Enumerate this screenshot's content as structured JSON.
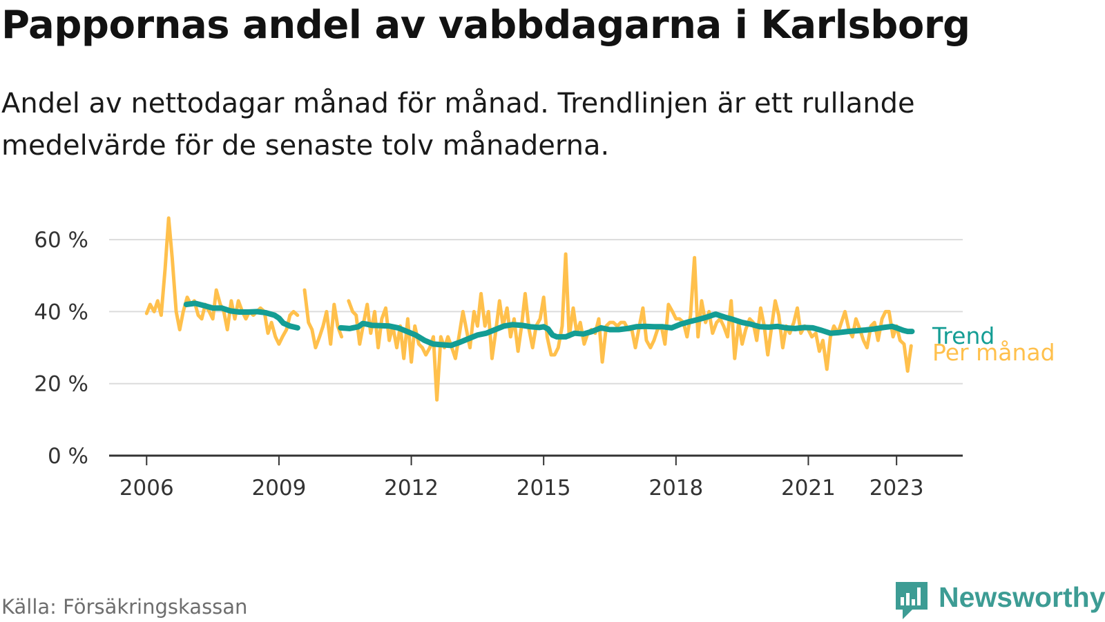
{
  "title": "Pappornas andel av vabbdagarna i Karlsborg",
  "subtitle": "Andel av nettodagar månad för månad. Trendlinjen är ett rullande medelvärde för de senaste tolv månaderna.",
  "source": "Källa: Försäkringskassan",
  "brand": {
    "name": "Newsworthy",
    "logo_icon": "bar-chart-speech-bubble-icon",
    "color": "#3d9c94"
  },
  "chart_data": {
    "type": "line",
    "title": "Pappornas andel av vabbdagarna i Karlsborg",
    "xlim": [
      2005.15,
      2024.5
    ],
    "ylim": [
      0,
      70
    ],
    "y_ticks": [
      0,
      20,
      40,
      60
    ],
    "y_tick_labels": [
      "0 %",
      "20 %",
      "40 %",
      "60 %"
    ],
    "x_ticks": [
      2006,
      2009,
      2012,
      2015,
      2018,
      2021,
      2023
    ],
    "x_tick_labels": [
      "2006",
      "2009",
      "2012",
      "2015",
      "2018",
      "2021",
      "2023"
    ],
    "grid": true,
    "colors": {
      "per_month": "#ffc04c",
      "trend": "#149d94",
      "grid": "#dcdcdc",
      "axis": "#333333",
      "tick_text": "#333333"
    },
    "series": [
      {
        "name": "Per månad",
        "points": [
          [
            2006.0,
            39.5
          ],
          [
            2006.08,
            42
          ],
          [
            2006.17,
            40
          ],
          [
            2006.25,
            43
          ],
          [
            2006.33,
            39
          ],
          [
            2006.42,
            52
          ],
          [
            2006.5,
            66
          ],
          [
            2006.58,
            55
          ],
          [
            2006.67,
            40
          ],
          [
            2006.75,
            35
          ],
          [
            2006.83,
            40
          ],
          [
            2006.92,
            44
          ],
          [
            2007.0,
            42
          ],
          [
            2007.08,
            43
          ],
          [
            2007.17,
            39
          ],
          [
            2007.25,
            38
          ],
          [
            2007.33,
            42
          ],
          [
            2007.42,
            40
          ],
          [
            2007.5,
            38
          ],
          [
            2007.58,
            46
          ],
          [
            2007.67,
            42
          ],
          [
            2007.75,
            40
          ],
          [
            2007.83,
            35
          ],
          [
            2007.92,
            43
          ],
          [
            2008.0,
            38
          ],
          [
            2008.08,
            43
          ],
          [
            2008.17,
            40
          ],
          [
            2008.25,
            38
          ],
          [
            2008.33,
            40
          ],
          [
            2008.42,
            39
          ],
          [
            2008.5,
            40
          ],
          [
            2008.58,
            41
          ],
          [
            2008.67,
            40
          ],
          [
            2008.75,
            34
          ],
          [
            2008.83,
            37
          ],
          [
            2008.92,
            33
          ],
          [
            2009.0,
            31
          ],
          [
            2009.08,
            33
          ],
          [
            2009.17,
            35
          ],
          [
            2009.25,
            39
          ],
          [
            2009.33,
            40
          ],
          [
            2009.42,
            39
          ],
          null,
          [
            2009.58,
            46
          ],
          [
            2009.67,
            37
          ],
          [
            2009.75,
            35
          ],
          [
            2009.83,
            30
          ],
          [
            2009.92,
            33
          ],
          [
            2010.0,
            36
          ],
          [
            2010.08,
            40
          ],
          [
            2010.17,
            31
          ],
          [
            2010.25,
            42
          ],
          [
            2010.33,
            36
          ],
          [
            2010.42,
            33
          ],
          null,
          [
            2010.58,
            43
          ],
          [
            2010.67,
            40
          ],
          [
            2010.75,
            39
          ],
          [
            2010.83,
            31
          ],
          [
            2010.92,
            37
          ],
          [
            2011.0,
            42
          ],
          [
            2011.08,
            34
          ],
          [
            2011.17,
            40
          ],
          [
            2011.25,
            30
          ],
          [
            2011.33,
            38
          ],
          [
            2011.42,
            41
          ],
          [
            2011.5,
            32
          ],
          [
            2011.58,
            36
          ],
          [
            2011.67,
            30
          ],
          [
            2011.75,
            36
          ],
          [
            2011.83,
            27
          ],
          [
            2011.92,
            38
          ],
          [
            2012.0,
            26
          ],
          [
            2012.08,
            36
          ],
          [
            2012.17,
            31
          ],
          [
            2012.25,
            30
          ],
          [
            2012.33,
            28
          ],
          [
            2012.42,
            30
          ],
          [
            2012.5,
            33
          ],
          [
            2012.58,
            15.5
          ],
          [
            2012.67,
            33
          ],
          [
            2012.75,
            30
          ],
          [
            2012.83,
            33
          ],
          [
            2012.92,
            30
          ],
          [
            2013.0,
            27
          ],
          [
            2013.08,
            33
          ],
          [
            2013.17,
            40
          ],
          [
            2013.25,
            35
          ],
          [
            2013.33,
            30
          ],
          [
            2013.42,
            40
          ],
          [
            2013.5,
            36
          ],
          [
            2013.58,
            45
          ],
          [
            2013.67,
            36
          ],
          [
            2013.75,
            40
          ],
          [
            2013.83,
            27
          ],
          [
            2013.92,
            35
          ],
          [
            2014.0,
            43
          ],
          [
            2014.08,
            36
          ],
          [
            2014.17,
            41
          ],
          [
            2014.25,
            33
          ],
          [
            2014.33,
            38
          ],
          [
            2014.42,
            29
          ],
          [
            2014.5,
            36
          ],
          [
            2014.58,
            45
          ],
          [
            2014.67,
            35
          ],
          [
            2014.75,
            30
          ],
          [
            2014.83,
            36
          ],
          [
            2014.92,
            38
          ],
          [
            2015.0,
            44
          ],
          [
            2015.08,
            33
          ],
          [
            2015.17,
            28
          ],
          [
            2015.25,
            28
          ],
          [
            2015.33,
            30
          ],
          [
            2015.42,
            36
          ],
          [
            2015.5,
            56
          ],
          [
            2015.58,
            33
          ],
          [
            2015.67,
            41
          ],
          [
            2015.75,
            34
          ],
          [
            2015.83,
            37
          ],
          [
            2015.92,
            31
          ],
          [
            2016.0,
            34
          ],
          [
            2016.08,
            35
          ],
          [
            2016.17,
            34
          ],
          [
            2016.25,
            38
          ],
          [
            2016.33,
            26
          ],
          [
            2016.42,
            36
          ],
          [
            2016.5,
            37
          ],
          [
            2016.58,
            37
          ],
          [
            2016.67,
            36
          ],
          [
            2016.75,
            37
          ],
          [
            2016.83,
            37
          ],
          [
            2016.92,
            35
          ],
          [
            2017.0,
            35
          ],
          [
            2017.08,
            30
          ],
          [
            2017.17,
            36
          ],
          [
            2017.25,
            41
          ],
          [
            2017.33,
            32
          ],
          [
            2017.42,
            30
          ],
          [
            2017.5,
            32
          ],
          [
            2017.58,
            35
          ],
          [
            2017.67,
            36
          ],
          [
            2017.75,
            31
          ],
          [
            2017.83,
            42
          ],
          [
            2017.92,
            40
          ],
          [
            2018.0,
            38
          ],
          [
            2018.08,
            38
          ],
          [
            2018.17,
            37
          ],
          [
            2018.25,
            33
          ],
          [
            2018.33,
            39
          ],
          [
            2018.42,
            55
          ],
          [
            2018.5,
            33
          ],
          [
            2018.58,
            43
          ],
          [
            2018.67,
            37
          ],
          [
            2018.75,
            40
          ],
          [
            2018.83,
            34
          ],
          [
            2018.92,
            37
          ],
          [
            2019.0,
            38
          ],
          [
            2019.08,
            36
          ],
          [
            2019.17,
            33
          ],
          [
            2019.25,
            43
          ],
          [
            2019.33,
            27
          ],
          [
            2019.42,
            37
          ],
          [
            2019.5,
            31
          ],
          [
            2019.58,
            35
          ],
          [
            2019.67,
            38
          ],
          [
            2019.75,
            37
          ],
          [
            2019.83,
            32
          ],
          [
            2019.92,
            41
          ],
          [
            2020.0,
            36
          ],
          [
            2020.08,
            28
          ],
          [
            2020.17,
            36
          ],
          [
            2020.25,
            43
          ],
          [
            2020.33,
            39
          ],
          [
            2020.42,
            30
          ],
          [
            2020.5,
            36
          ],
          [
            2020.58,
            34
          ],
          [
            2020.67,
            37
          ],
          [
            2020.75,
            41
          ],
          [
            2020.83,
            34
          ],
          [
            2020.92,
            36
          ],
          [
            2021.0,
            35
          ],
          [
            2021.08,
            33
          ],
          [
            2021.17,
            34
          ],
          [
            2021.25,
            29
          ],
          [
            2021.33,
            32
          ],
          [
            2021.42,
            24
          ],
          [
            2021.5,
            33
          ],
          [
            2021.58,
            36
          ],
          [
            2021.67,
            34
          ],
          [
            2021.75,
            37
          ],
          [
            2021.83,
            40
          ],
          [
            2021.92,
            35
          ],
          [
            2022.0,
            33
          ],
          [
            2022.08,
            38
          ],
          [
            2022.17,
            35
          ],
          [
            2022.25,
            32
          ],
          [
            2022.33,
            30
          ],
          [
            2022.42,
            36
          ],
          [
            2022.5,
            37
          ],
          [
            2022.58,
            32
          ],
          [
            2022.67,
            38
          ],
          [
            2022.75,
            40
          ],
          [
            2022.83,
            40
          ],
          [
            2022.92,
            33
          ],
          [
            2023.0,
            36
          ],
          [
            2023.08,
            32
          ],
          [
            2023.17,
            31
          ],
          [
            2023.25,
            23.5
          ],
          [
            2023.33,
            30.5
          ]
        ]
      },
      {
        "name": "Trend",
        "points": [
          [
            2006.9,
            42
          ],
          [
            2007.1,
            42.3
          ],
          [
            2007.3,
            41.7
          ],
          [
            2007.5,
            41
          ],
          [
            2007.7,
            41
          ],
          [
            2007.9,
            40.2
          ],
          [
            2008.1,
            39.9
          ],
          [
            2008.3,
            39.9
          ],
          [
            2008.5,
            40
          ],
          [
            2008.7,
            39.7
          ],
          [
            2008.9,
            39
          ],
          [
            2009.0,
            38.2
          ],
          [
            2009.1,
            36.8
          ],
          [
            2009.25,
            36
          ],
          [
            2009.42,
            35.5
          ],
          null,
          [
            2010.4,
            35.5
          ],
          [
            2010.6,
            35.3
          ],
          [
            2010.8,
            35.8
          ],
          [
            2010.9,
            36.7
          ],
          [
            2011.0,
            36.5
          ],
          [
            2011.1,
            36.2
          ],
          [
            2011.3,
            36.1
          ],
          [
            2011.5,
            36
          ],
          [
            2011.7,
            35.5
          ],
          [
            2011.9,
            34.5
          ],
          [
            2012.1,
            33.5
          ],
          [
            2012.3,
            32
          ],
          [
            2012.5,
            31
          ],
          [
            2012.7,
            30.8
          ],
          [
            2012.9,
            30.6
          ],
          [
            2013.1,
            31.5
          ],
          [
            2013.3,
            32.5
          ],
          [
            2013.5,
            33.5
          ],
          [
            2013.7,
            34
          ],
          [
            2013.9,
            35
          ],
          [
            2014.1,
            36
          ],
          [
            2014.3,
            36.4
          ],
          [
            2014.5,
            36.2
          ],
          [
            2014.7,
            35.8
          ],
          [
            2014.9,
            35.6
          ],
          [
            2015.0,
            35.8
          ],
          [
            2015.1,
            35.2
          ],
          [
            2015.2,
            33.5
          ],
          [
            2015.3,
            33
          ],
          [
            2015.5,
            33
          ],
          [
            2015.7,
            34
          ],
          [
            2015.9,
            33.8
          ],
          [
            2016.1,
            34.5
          ],
          [
            2016.3,
            35.5
          ],
          [
            2016.5,
            35
          ],
          [
            2016.7,
            35
          ],
          [
            2016.9,
            35.3
          ],
          [
            2017.1,
            35.8
          ],
          [
            2017.3,
            35.9
          ],
          [
            2017.5,
            35.8
          ],
          [
            2017.7,
            35.8
          ],
          [
            2017.9,
            35.5
          ],
          [
            2018.1,
            36.5
          ],
          [
            2018.3,
            37.2
          ],
          [
            2018.5,
            37.8
          ],
          [
            2018.7,
            38.5
          ],
          [
            2018.9,
            39.3
          ],
          [
            2019.1,
            38.5
          ],
          [
            2019.3,
            37.8
          ],
          [
            2019.5,
            37
          ],
          [
            2019.7,
            36.5
          ],
          [
            2019.9,
            35.8
          ],
          [
            2020.1,
            35.7
          ],
          [
            2020.3,
            35.9
          ],
          [
            2020.5,
            35.5
          ],
          [
            2020.7,
            35.3
          ],
          [
            2020.9,
            35.6
          ],
          [
            2021.1,
            35.5
          ],
          [
            2021.3,
            34.8
          ],
          [
            2021.5,
            34
          ],
          [
            2021.7,
            34.2
          ],
          [
            2021.9,
            34.5
          ],
          [
            2022.1,
            34.7
          ],
          [
            2022.3,
            34.9
          ],
          [
            2022.5,
            35.2
          ],
          [
            2022.7,
            35.6
          ],
          [
            2022.9,
            35.9
          ],
          [
            2023.0,
            35.5
          ],
          [
            2023.15,
            34.8
          ],
          [
            2023.25,
            34.5
          ],
          [
            2023.35,
            34.5
          ]
        ]
      }
    ]
  }
}
